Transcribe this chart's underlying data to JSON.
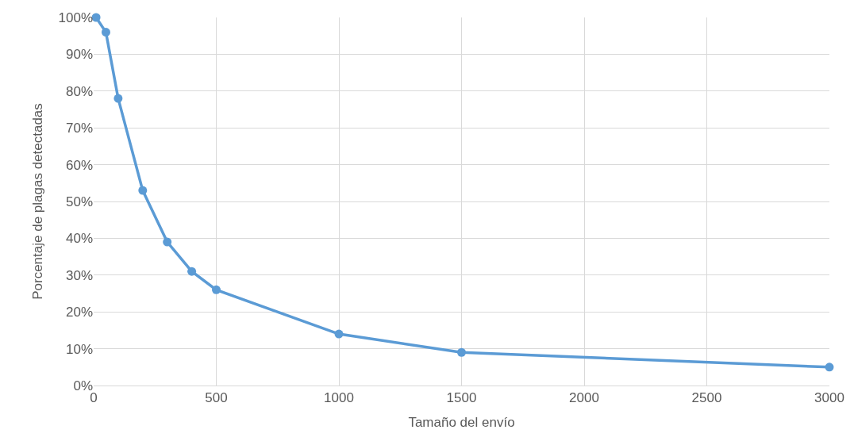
{
  "chart_data": {
    "type": "line",
    "xlabel": "Tamaño del envío",
    "ylabel": "Porcentaje de plagas detectadas",
    "x": [
      10,
      50,
      100,
      200,
      300,
      400,
      500,
      1000,
      1500,
      3000
    ],
    "series": [
      {
        "color": "#5b9bd5",
        "values": [
          100,
          96,
          78,
          53,
          39,
          31,
          26,
          14,
          9,
          5
        ]
      }
    ],
    "xlim": [
      0,
      3000
    ],
    "xticks": [
      0,
      500,
      1000,
      1500,
      2000,
      2500,
      3000
    ],
    "ylim": [
      0,
      100
    ],
    "yticks": [
      {
        "value": 0,
        "label": "0%"
      },
      {
        "value": 10,
        "label": "10%"
      },
      {
        "value": 20,
        "label": "20%"
      },
      {
        "value": 30,
        "label": "30%"
      },
      {
        "value": 40,
        "label": "40%"
      },
      {
        "value": 50,
        "label": "50%"
      },
      {
        "value": 60,
        "label": "60%"
      },
      {
        "value": 70,
        "label": "70%"
      },
      {
        "value": 80,
        "label": "80%"
      },
      {
        "value": 90,
        "label": "90%"
      },
      {
        "value": 100,
        "label": "100%"
      }
    ],
    "grid": true,
    "marker": "circle",
    "line_style": "solid"
  }
}
